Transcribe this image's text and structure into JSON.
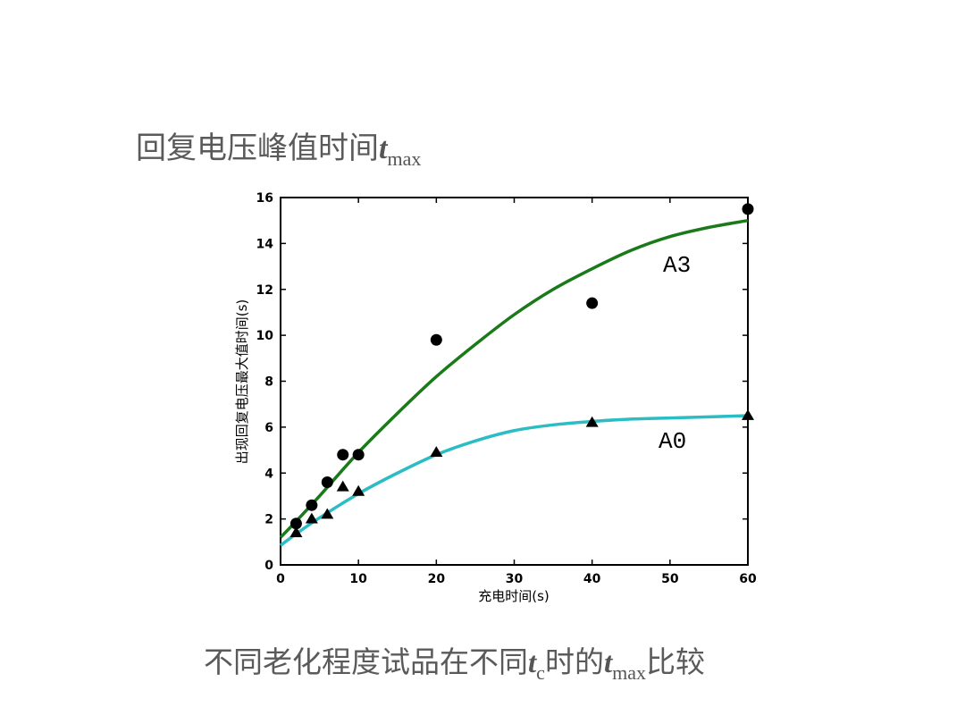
{
  "slide": {
    "title_main": "回复电压峰值时间",
    "title_var": "t",
    "title_sub": "max",
    "caption_part1": "不同老化程度试品在不同",
    "caption_var1": "t",
    "caption_sub1": "c",
    "caption_part2": "时的",
    "caption_var2": "t",
    "caption_sub2": "max",
    "caption_part3": "比较"
  },
  "chart_data": {
    "type": "scatter",
    "xlabel": "充电时间(s)",
    "ylabel": "出现回复电压最大值时间(s)",
    "xlim": [
      0,
      60
    ],
    "ylim": [
      0,
      16
    ],
    "xticks": [
      0,
      10,
      20,
      30,
      40,
      50,
      60
    ],
    "yticks": [
      0,
      2,
      4,
      6,
      8,
      10,
      12,
      14,
      16
    ],
    "series": [
      {
        "name": "A3",
        "marker": "circle",
        "marker_color": "#000000",
        "fit_color": "#1a7a1a",
        "x": [
          2,
          4,
          6,
          8,
          10,
          20,
          40,
          60
        ],
        "y": [
          1.8,
          2.6,
          3.6,
          4.8,
          4.8,
          9.8,
          11.4,
          15.5
        ],
        "fit": {
          "x": [
            0,
            2,
            5,
            10,
            15,
            20,
            25,
            30,
            35,
            40,
            45,
            50,
            55,
            60
          ],
          "y": [
            1.2,
            1.9,
            3.0,
            4.9,
            6.6,
            8.2,
            9.6,
            10.9,
            12.0,
            12.9,
            13.7,
            14.3,
            14.7,
            15.0
          ]
        }
      },
      {
        "name": "A0",
        "marker": "triangle",
        "marker_color": "#000000",
        "fit_color": "#2bbcc4",
        "x": [
          2,
          4,
          6,
          8,
          10,
          20,
          40,
          60
        ],
        "y": [
          1.4,
          2.0,
          2.2,
          3.4,
          3.2,
          4.9,
          6.2,
          6.5
        ],
        "fit": {
          "x": [
            0,
            2,
            5,
            10,
            15,
            20,
            25,
            30,
            35,
            40,
            45,
            50,
            55,
            60
          ],
          "y": [
            0.85,
            1.35,
            2.05,
            3.1,
            4.0,
            4.8,
            5.4,
            5.85,
            6.1,
            6.25,
            6.35,
            6.4,
            6.45,
            6.5
          ]
        }
      }
    ],
    "annotations": [
      "A3",
      "A0"
    ]
  }
}
